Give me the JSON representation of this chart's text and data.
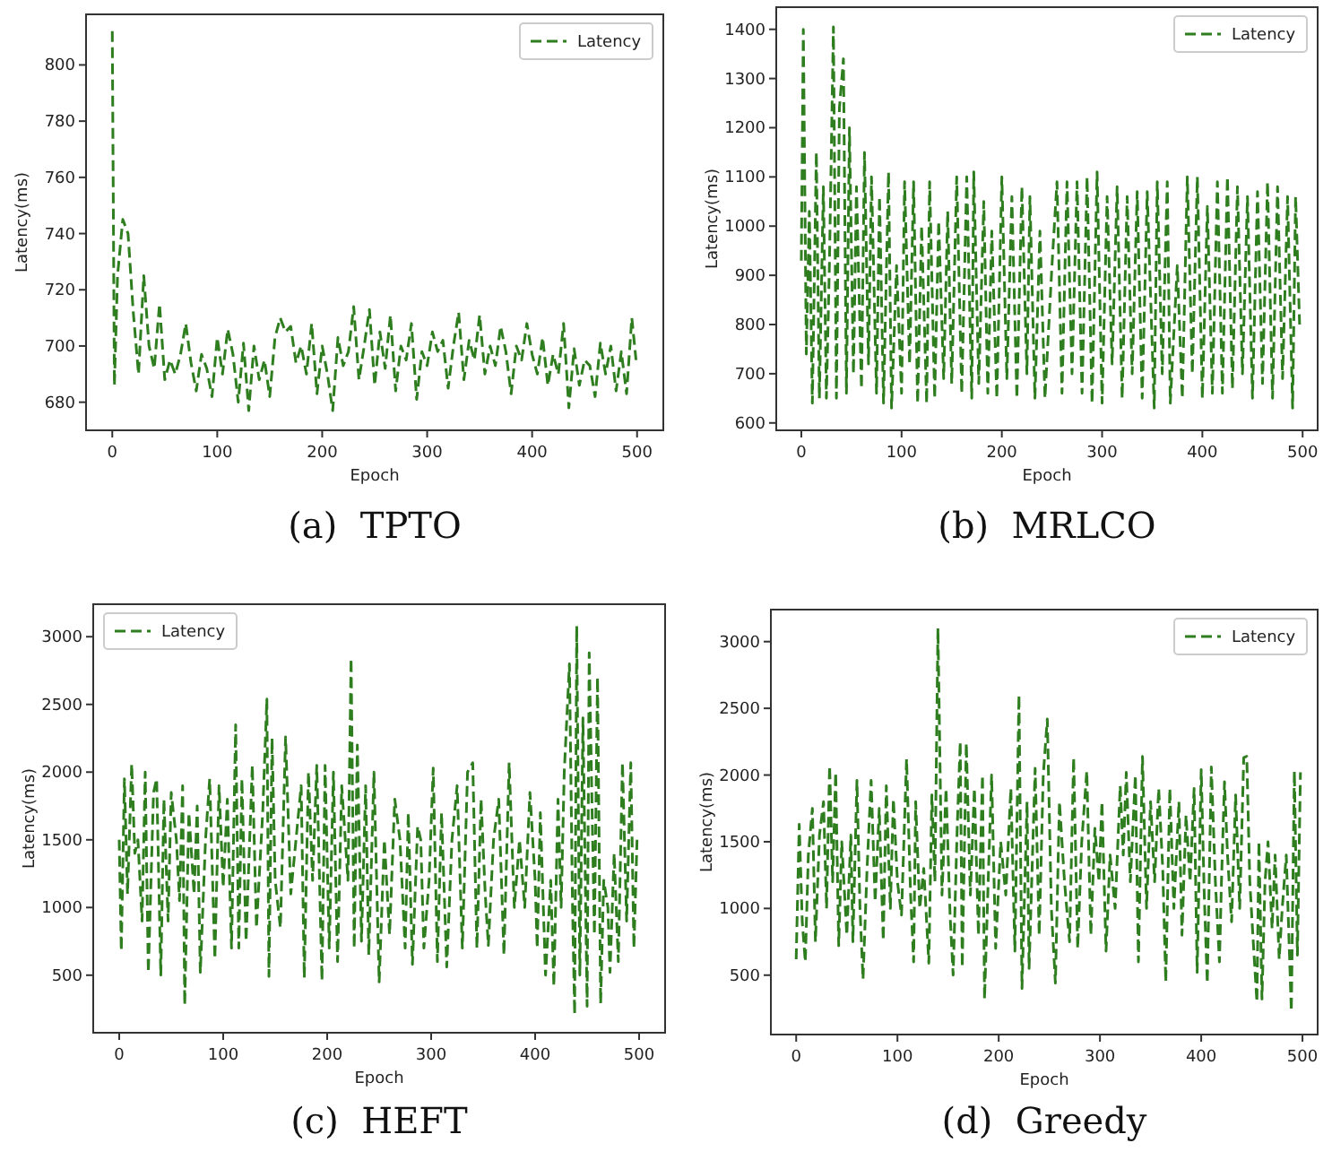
{
  "chart_data": [
    {
      "type": "line",
      "title": "(a)  TPTO",
      "xlabel": "Epoch",
      "ylabel": "Latency(ms)",
      "xlim": [
        -25,
        525
      ],
      "ylim": [
        670,
        818
      ],
      "xticks": [
        0,
        100,
        200,
        300,
        400,
        500
      ],
      "yticks": [
        680,
        700,
        720,
        740,
        760,
        780,
        800
      ],
      "grid": false,
      "legend": "top right",
      "line_style": "dashed",
      "marker": "none",
      "series": [
        {
          "name": "Latency",
          "color": "#2e7d1e",
          "x": [
            0,
            2,
            5,
            10,
            15,
            20,
            25,
            30,
            35,
            40,
            45,
            50,
            55,
            60,
            65,
            70,
            75,
            80,
            85,
            90,
            95,
            100,
            105,
            110,
            115,
            120,
            125,
            130,
            135,
            140,
            145,
            150,
            155,
            160,
            165,
            170,
            175,
            180,
            185,
            190,
            195,
            200,
            205,
            210,
            215,
            220,
            225,
            230,
            235,
            240,
            245,
            250,
            255,
            260,
            265,
            270,
            275,
            280,
            285,
            290,
            295,
            300,
            305,
            310,
            315,
            320,
            325,
            330,
            335,
            340,
            345,
            350,
            355,
            360,
            365,
            370,
            375,
            380,
            385,
            390,
            395,
            400,
            405,
            410,
            415,
            420,
            425,
            430,
            435,
            440,
            445,
            450,
            455,
            460,
            465,
            470,
            475,
            480,
            485,
            490,
            495,
            499
          ],
          "values": [
            812,
            686,
            725,
            745,
            740,
            712,
            690,
            725,
            700,
            692,
            715,
            688,
            695,
            690,
            697,
            708,
            694,
            684,
            697,
            692,
            682,
            703,
            690,
            706,
            697,
            680,
            701,
            677,
            700,
            688,
            695,
            682,
            703,
            710,
            705,
            707,
            694,
            700,
            690,
            708,
            683,
            700,
            690,
            677,
            703,
            693,
            698,
            714,
            688,
            700,
            713,
            686,
            705,
            692,
            711,
            684,
            700,
            695,
            708,
            681,
            698,
            693,
            705,
            698,
            702,
            685,
            700,
            712,
            688,
            702,
            695,
            711,
            690,
            700,
            693,
            707,
            698,
            683,
            700,
            695,
            708,
            697,
            690,
            703,
            686,
            697,
            690,
            708,
            678,
            699,
            686,
            695,
            693,
            682,
            701,
            690,
            700,
            684,
            698,
            683,
            710,
            695
          ]
        }
      ]
    },
    {
      "type": "line",
      "title": "(b)  MRLCO",
      "xlabel": "Epoch",
      "ylabel": "Latency(ms)",
      "xlim": [
        -25,
        515
      ],
      "ylim": [
        585,
        1445
      ],
      "xticks": [
        0,
        100,
        200,
        300,
        400,
        500
      ],
      "yticks": [
        600,
        700,
        800,
        900,
        1000,
        1100,
        1200,
        1300,
        1400
      ],
      "grid": false,
      "legend": "top right",
      "line_style": "dashed",
      "marker": "none",
      "series": [
        {
          "name": "Latency",
          "color": "#2e7d1e",
          "x": [
            0,
            2,
            5,
            8,
            11,
            15,
            18,
            22,
            25,
            28,
            32,
            35,
            38,
            42,
            45,
            48,
            52,
            55,
            60,
            63,
            67,
            70,
            75,
            78,
            82,
            87,
            90,
            95,
            100,
            103,
            108,
            112,
            116,
            120,
            125,
            128,
            133,
            137,
            142,
            146,
            150,
            155,
            160,
            165,
            170,
            172,
            177,
            182,
            186,
            190,
            195,
            200,
            205,
            210,
            215,
            220,
            225,
            228,
            233,
            238,
            243,
            250,
            255,
            260,
            265,
            270,
            275,
            280,
            285,
            290,
            295,
            300,
            305,
            310,
            315,
            320,
            325,
            330,
            335,
            340,
            345,
            352,
            355,
            360,
            365,
            368,
            375,
            380,
            385,
            390,
            395,
            400,
            405,
            410,
            415,
            420,
            425,
            430,
            435,
            440,
            445,
            450,
            455,
            460,
            465,
            470,
            475,
            480,
            485,
            490,
            493,
            497
          ],
          "values": [
            930,
            1400,
            740,
            1030,
            640,
            1150,
            650,
            1080,
            650,
            920,
            1405,
            650,
            1240,
            1340,
            660,
            1200,
            700,
            1080,
            670,
            1150,
            720,
            1100,
            660,
            1060,
            640,
            1110,
            630,
            920,
            660,
            1090,
            720,
            1090,
            640,
            1000,
            640,
            1090,
            650,
            1010,
            690,
            1030,
            680,
            1100,
            660,
            1100,
            650,
            1110,
            680,
            1050,
            660,
            990,
            650,
            1100,
            690,
            1060,
            650,
            1080,
            700,
            1060,
            650,
            990,
            650,
            920,
            1090,
            660,
            1090,
            700,
            1090,
            660,
            1100,
            640,
            1110,
            640,
            1060,
            720,
            1080,
            650,
            1060,
            700,
            1070,
            650,
            1070,
            630,
            1090,
            700,
            1090,
            640,
            920,
            650,
            1100,
            700,
            1100,
            650,
            1040,
            660,
            1090,
            660,
            1100,
            670,
            1080,
            700,
            1060,
            650,
            1070,
            680,
            1090,
            650,
            1080,
            690,
            1060,
            630,
            1060,
            800
          ]
        }
      ]
    },
    {
      "type": "line",
      "title": "(c)  HEFT",
      "xlabel": "Epoch",
      "ylabel": "Latency(ms)",
      "xlim": [
        -25,
        525
      ],
      "ylim": [
        75,
        3240
      ],
      "xticks": [
        0,
        100,
        200,
        300,
        400,
        500
      ],
      "yticks": [
        500,
        1000,
        1500,
        2000,
        2500,
        3000
      ],
      "grid": false,
      "legend": "top left",
      "line_style": "dashed",
      "marker": "none",
      "series": [
        {
          "name": "Latency",
          "color": "#2e7d1e",
          "x": [
            0,
            2,
            5,
            8,
            12,
            15,
            18,
            22,
            25,
            28,
            33,
            36,
            40,
            43,
            47,
            50,
            55,
            58,
            61,
            63,
            67,
            72,
            75,
            78,
            83,
            87,
            92,
            96,
            100,
            104,
            108,
            112,
            115,
            118,
            122,
            128,
            132,
            138,
            142,
            144,
            147,
            150,
            155,
            160,
            165,
            170,
            175,
            178,
            182,
            186,
            190,
            195,
            198,
            202,
            206,
            210,
            214,
            220,
            223,
            226,
            229,
            233,
            237,
            240,
            245,
            250,
            255,
            260,
            265,
            270,
            275,
            278,
            282,
            287,
            290,
            293,
            298,
            302,
            306,
            310,
            315,
            320,
            325,
            330,
            335,
            340,
            344,
            348,
            352,
            355,
            360,
            365,
            370,
            375,
            380,
            385,
            390,
            395,
            400,
            402,
            405,
            410,
            415,
            418,
            422,
            425,
            428,
            433,
            436,
            438,
            440,
            443,
            446,
            450,
            452,
            457,
            460,
            463,
            466,
            470,
            472,
            476,
            480,
            484,
            488,
            492,
            495,
            498
          ],
          "values": [
            1500,
            680,
            1950,
            1100,
            2060,
            1400,
            1500,
            900,
            2000,
            520,
            1850,
            1950,
            500,
            1800,
            900,
            1850,
            1500,
            1050,
            1900,
            280,
            1700,
            1100,
            1750,
            520,
            1500,
            1950,
            620,
            1900,
            1150,
            1800,
            700,
            2350,
            700,
            1950,
            750,
            2050,
            850,
            1700,
            2540,
            490,
            2250,
            1200,
            850,
            2260,
            1100,
            1500,
            1900,
            480,
            2000,
            1200,
            2050,
            460,
            2050,
            700,
            2000,
            600,
            1900,
            1200,
            2840,
            700,
            2200,
            750,
            1900,
            650,
            2000,
            450,
            1500,
            800,
            1800,
            1500,
            700,
            1700,
            580,
            1600,
            1500,
            700,
            1200,
            2030,
            600,
            1700,
            560,
            1500,
            1900,
            700,
            2000,
            2070,
            700,
            1800,
            1100,
            720,
            1500,
            1800,
            650,
            2070,
            1000,
            1500,
            1000,
            1850,
            1200,
            700,
            1700,
            500,
            1200,
            420,
            1800,
            1000,
            2000,
            2800,
            1000,
            210,
            3080,
            500,
            2400,
            270,
            2880,
            800,
            2700,
            290,
            1200,
            1000,
            520,
            1400,
            600,
            2070,
            900,
            2070,
            700,
            1500
          ]
        }
      ]
    },
    {
      "type": "line",
      "title": "(d)  Greedy",
      "xlabel": "Epoch",
      "ylabel": "Latency(ms)",
      "xlim": [
        -25,
        515
      ],
      "ylim": [
        55,
        3240
      ],
      "xticks": [
        0,
        100,
        200,
        300,
        400,
        500
      ],
      "yticks": [
        500,
        1000,
        1500,
        2000,
        2500,
        3000
      ],
      "grid": false,
      "legend": "top right",
      "line_style": "dashed",
      "marker": "none",
      "series": [
        {
          "name": "Latency",
          "color": "#2e7d1e",
          "x": [
            0,
            3,
            6,
            9,
            12,
            16,
            19,
            23,
            27,
            30,
            33,
            36,
            39,
            42,
            45,
            50,
            54,
            56,
            60,
            63,
            66,
            70,
            74,
            78,
            82,
            86,
            89,
            93,
            96,
            100,
            104,
            109,
            113,
            116,
            118,
            122,
            126,
            131,
            134,
            137,
            140,
            144,
            148,
            152,
            155,
            159,
            162,
            164,
            168,
            172,
            176,
            180,
            184,
            186,
            190,
            193,
            197,
            202,
            207,
            212,
            216,
            220,
            223,
            228,
            230,
            236,
            240,
            244,
            248,
            252,
            256,
            260,
            265,
            270,
            274,
            278,
            282,
            287,
            291,
            295,
            299,
            302,
            306,
            310,
            315,
            320,
            323,
            326,
            330,
            335,
            338,
            342,
            346,
            350,
            354,
            358,
            362,
            365,
            369,
            373,
            378,
            381,
            385,
            389,
            393,
            396,
            400,
            403,
            406,
            410,
            414,
            418,
            420,
            423,
            426,
            430,
            434,
            438,
            442,
            445,
            448,
            451,
            455,
            457,
            460,
            463,
            466,
            470,
            473,
            477,
            480,
            484,
            489,
            492,
            495,
            498
          ],
          "values": [
            620,
            1630,
            900,
            600,
            1400,
            1750,
            750,
            1550,
            1800,
            1000,
            2070,
            1200,
            2020,
            720,
            1500,
            800,
            1550,
            750,
            1960,
            1000,
            470,
            1300,
            1960,
            1050,
            1750,
            760,
            1920,
            1000,
            1820,
            1200,
            950,
            2120,
            1100,
            600,
            1800,
            1000,
            1300,
            590,
            1850,
            1200,
            3100,
            1100,
            1900,
            950,
            500,
            1600,
            2250,
            560,
            2240,
            1100,
            1900,
            800,
            2000,
            320,
            1300,
            2000,
            700,
            1500,
            1100,
            1900,
            680,
            2600,
            400,
            1800,
            550,
            2050,
            800,
            2000,
            2420,
            1000,
            440,
            1800,
            1200,
            750,
            2130,
            700,
            1500,
            2030,
            800,
            1600,
            1200,
            1800,
            680,
            1400,
            1000,
            1920,
            1400,
            2020,
            1200,
            2000,
            600,
            2140,
            1000,
            1800,
            1200,
            1900,
            1300,
            450,
            1900,
            1000,
            1800,
            800,
            1700,
            1200,
            1900,
            520,
            2040,
            1100,
            440,
            2060,
            1200,
            600,
            1200,
            1950,
            1400,
            900,
            1850,
            1000,
            2130,
            2140,
            1200,
            800,
            300,
            1500,
            320,
            1200,
            1500,
            850,
            1400,
            620,
            1000,
            1400,
            230,
            2030,
            650,
            2020
          ]
        }
      ]
    }
  ]
}
